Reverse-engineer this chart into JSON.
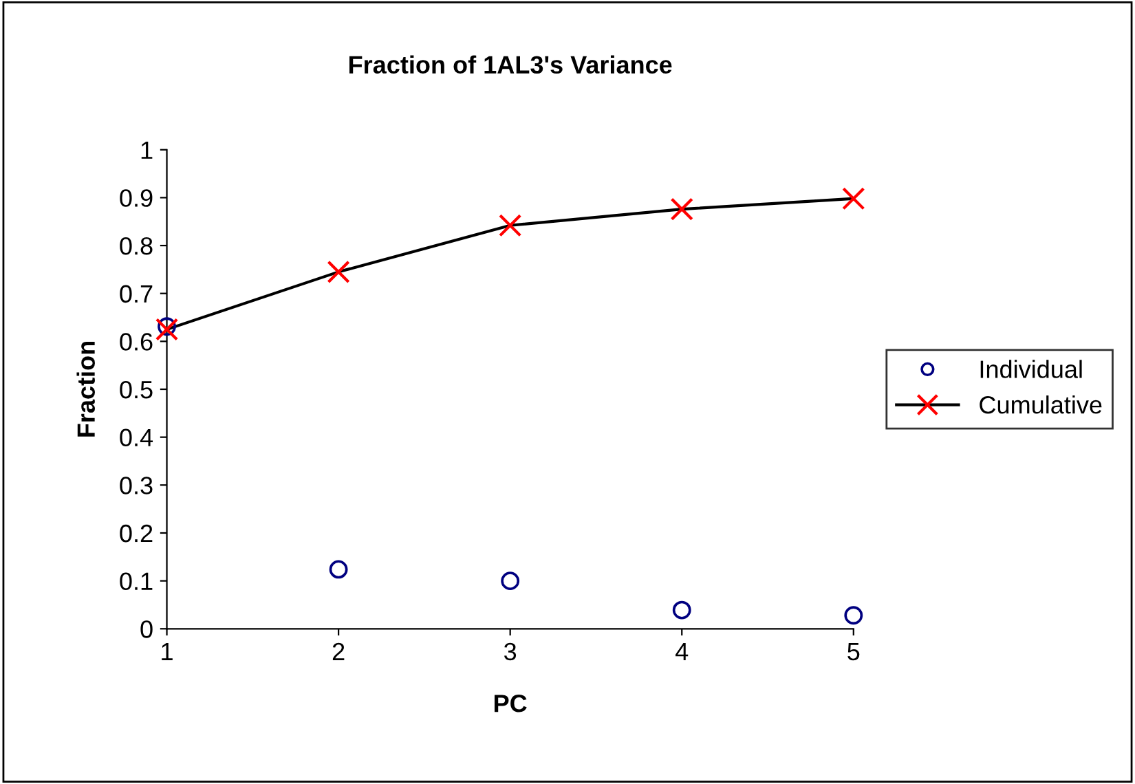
{
  "chart_data": {
    "type": "line",
    "title": "Fraction of 1AL3's Variance",
    "xlabel": "PC",
    "ylabel": "Fraction",
    "x": [
      1,
      2,
      3,
      4,
      5
    ],
    "series": [
      {
        "name": "Individual",
        "type": "scatter",
        "marker": "circle",
        "color": "#000080",
        "values": [
          0.631,
          0.124,
          0.1,
          0.039,
          0.028
        ]
      },
      {
        "name": "Cumulative",
        "marker": "cross",
        "color": "#000000",
        "colors": [
          "#ff0000",
          "#ff0000",
          "#ff0000",
          "#ff0000",
          "#ff0000"
        ],
        "values": [
          0.625,
          0.745,
          0.842,
          0.876,
          0.898
        ]
      }
    ],
    "xlim": [
      1,
      5
    ],
    "xticks": [
      1,
      2,
      3,
      4,
      5
    ],
    "ylim": [
      0,
      1
    ],
    "yticks": [
      0,
      0.1,
      0.2,
      0.3,
      0.4,
      0.5,
      0.6,
      0.7,
      0.8,
      0.9,
      1
    ],
    "grid": false,
    "legend": "right"
  }
}
